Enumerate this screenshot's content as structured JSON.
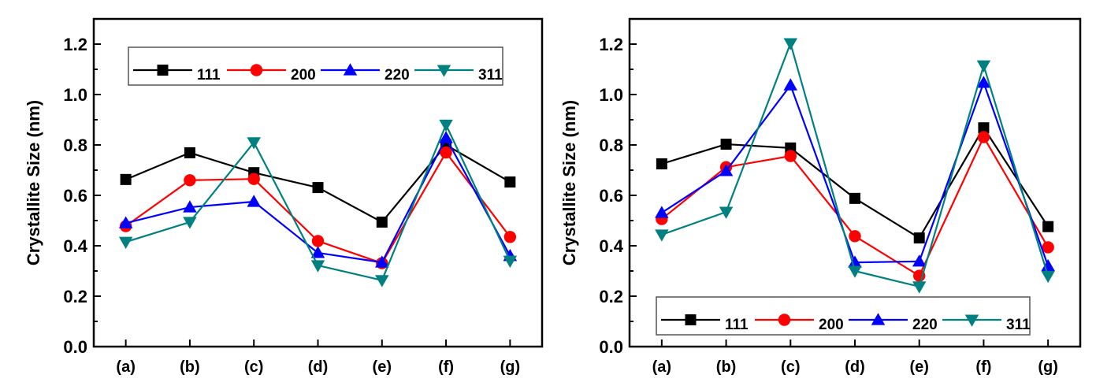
{
  "chart_data": [
    {
      "type": "line",
      "title": "",
      "xlabel": "",
      "ylabel": "Crystallite Size (nm)",
      "categories": [
        "(a)",
        "(b)",
        "(c)",
        "(d)",
        "(e)",
        "(f)",
        "(g)"
      ],
      "ylim": [
        0.0,
        1.3
      ],
      "yticks": [
        0.0,
        0.2,
        0.4,
        0.6,
        0.8,
        1.0,
        1.2
      ],
      "ytick_labels": [
        "0.0",
        "0.2",
        "0.4",
        "0.6",
        "0.8",
        "1.0",
        "1.2"
      ],
      "grid": false,
      "legend_position": "top",
      "series": [
        {
          "name": "111",
          "color": "#000000",
          "marker": "square",
          "values": [
            0.663,
            0.769,
            0.69,
            0.631,
            0.494,
            0.8,
            0.653
          ]
        },
        {
          "name": "200",
          "color": "#ff0000",
          "marker": "circle",
          "values": [
            0.478,
            0.66,
            0.665,
            0.419,
            0.331,
            0.77,
            0.435
          ]
        },
        {
          "name": "220",
          "color": "#0000ff",
          "marker": "triangle-up",
          "values": [
            0.49,
            0.553,
            0.575,
            0.372,
            0.334,
            0.828,
            0.36
          ]
        },
        {
          "name": "311",
          "color": "#008080",
          "marker": "triangle-down",
          "values": [
            0.415,
            0.494,
            0.81,
            0.322,
            0.263,
            0.88,
            0.34
          ]
        }
      ]
    },
    {
      "type": "line",
      "title": "",
      "xlabel": "",
      "ylabel": "Crystallite Size (nm)",
      "categories": [
        "(a)",
        "(b)",
        "(c)",
        "(d)",
        "(e)",
        "(f)",
        "(g)"
      ],
      "ylim": [
        0.0,
        1.3
      ],
      "yticks": [
        0.0,
        0.2,
        0.4,
        0.6,
        0.8,
        1.0,
        1.2
      ],
      "ytick_labels": [
        "0.0",
        "0.2",
        "0.4",
        "0.6",
        "0.8",
        "1.0",
        "1.2"
      ],
      "grid": false,
      "legend_position": "bottom",
      "series": [
        {
          "name": "111",
          "color": "#000000",
          "marker": "square",
          "values": [
            0.725,
            0.803,
            0.788,
            0.588,
            0.431,
            0.868,
            0.476
          ]
        },
        {
          "name": "200",
          "color": "#ff0000",
          "marker": "circle",
          "values": [
            0.506,
            0.712,
            0.756,
            0.438,
            0.281,
            0.831,
            0.394
          ]
        },
        {
          "name": "220",
          "color": "#0000ff",
          "marker": "triangle-up",
          "values": [
            0.531,
            0.697,
            1.037,
            0.334,
            0.338,
            1.047,
            0.32
          ]
        },
        {
          "name": "311",
          "color": "#008080",
          "marker": "triangle-down",
          "values": [
            0.444,
            0.534,
            1.203,
            0.3,
            0.238,
            1.115,
            0.28
          ]
        }
      ]
    }
  ]
}
